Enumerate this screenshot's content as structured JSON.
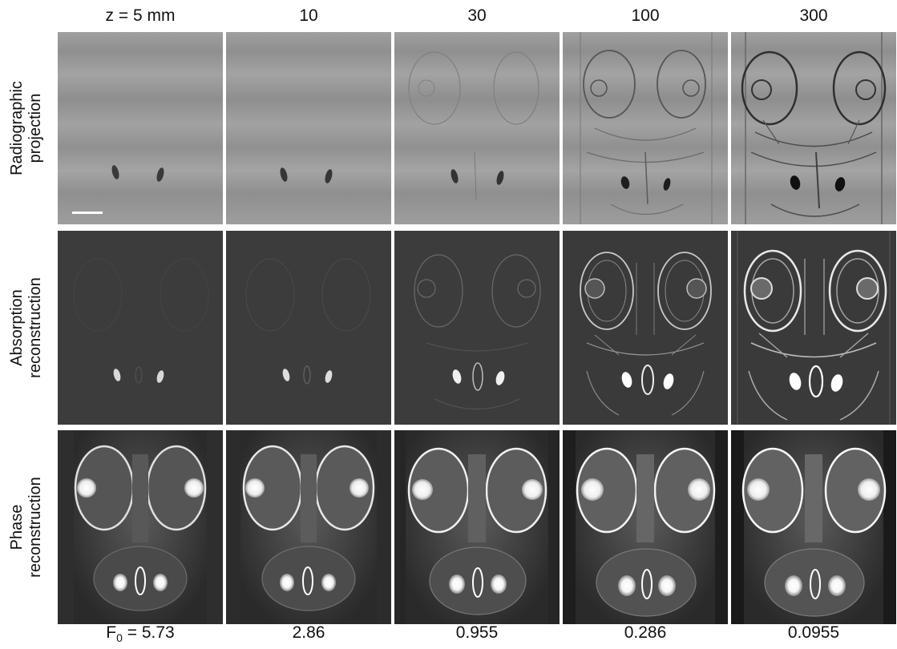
{
  "columns": {
    "headers": [
      "z = 5 mm",
      "10",
      "30",
      "100",
      "300"
    ]
  },
  "rows": [
    {
      "line1": "Radiographic",
      "line2": "projection"
    },
    {
      "line1": "Absorption",
      "line2": "reconstruction"
    },
    {
      "line1": "Phase",
      "line2": "reconstruction"
    }
  ],
  "footer": {
    "f0_prefix": "F",
    "f0_subscript": "0",
    "f0_first_value": " = 5.73",
    "values": [
      "2.86",
      "0.955",
      "0.286",
      "0.0955"
    ]
  },
  "colors": {
    "radiograph_bg": "#9a9a9a",
    "absorption_bg": "#3c3c3c",
    "phase_bg": "#2a2a2a"
  }
}
